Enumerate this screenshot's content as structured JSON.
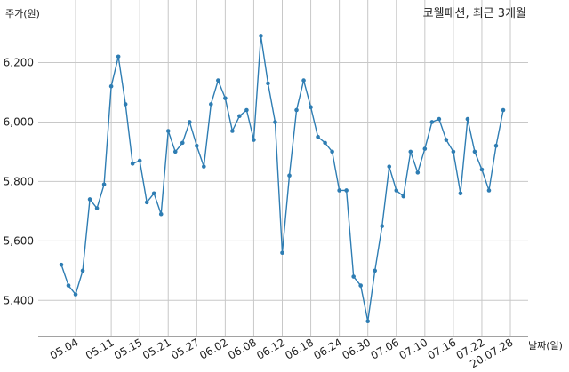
{
  "chart_data": {
    "type": "line",
    "title": "코웰패션, 최근 3개월",
    "xlabel": "날짜(일)",
    "ylabel": "주가(원)",
    "ylim": [
      5300,
      6300
    ],
    "yticks": [
      5400,
      5600,
      5800,
      6000,
      6200
    ],
    "ytick_labels": [
      "5,400",
      "5,600",
      "5,800",
      "6,000",
      "6,200"
    ],
    "xtick_labels": [
      "05.04",
      "05.11",
      "05.15",
      "05.21",
      "05.27",
      "06.02",
      "06.08",
      "06.12",
      "06.18",
      "06.24",
      "06.30",
      "07.06",
      "07.10",
      "07.16",
      "07.22",
      "20.07.28"
    ],
    "xtick_indices": [
      2,
      7,
      11,
      15,
      19,
      23,
      27,
      31,
      35,
      39,
      43,
      47,
      51,
      55,
      59,
      63
    ],
    "grid": true,
    "color": "#2e7db3",
    "series": [
      {
        "values": [
          5520,
          5450,
          5420,
          5500,
          5740,
          5710,
          5790,
          6120,
          6220,
          6060,
          5860,
          5870,
          5730,
          5760,
          5690,
          5970,
          5900,
          5930,
          6000,
          5920,
          5850,
          6060,
          6140,
          6080,
          5970,
          6020,
          6040,
          5940,
          6290,
          6130,
          6000,
          5560,
          5820,
          6040,
          6140,
          6050,
          5950,
          5930,
          5900,
          5770,
          5770,
          5480,
          5450,
          5330,
          5500,
          5650,
          5850,
          5770,
          5750,
          5900,
          5830,
          5910,
          6000,
          6010,
          5940,
          5900,
          5760,
          6010,
          5900,
          5840,
          5770,
          5920,
          6040
        ]
      }
    ]
  }
}
